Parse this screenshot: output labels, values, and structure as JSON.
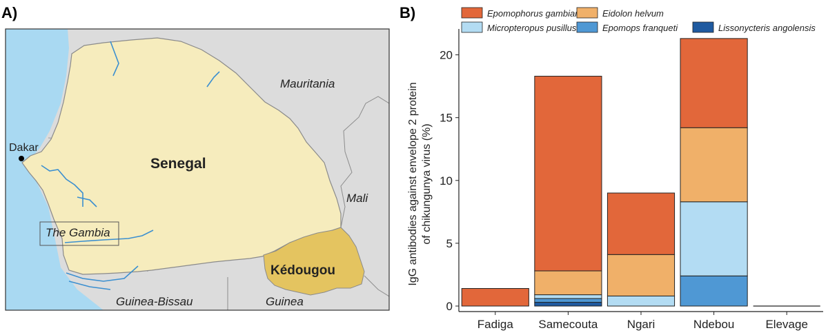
{
  "panels": {
    "a_label": "A)",
    "b_label": "B)"
  },
  "map": {
    "country_label": "Senegal",
    "region_label": "Kédougou",
    "capital_label": "Dakar",
    "neighbors": {
      "mauritania": "Mauritania",
      "mali": "Mali",
      "gambia": "The Gambia",
      "guinea_bissau": "Guinea-Bissau",
      "guinea": "Guinea"
    },
    "colors": {
      "sea": "#a9d9f2",
      "land": "#dcdcdc",
      "senegal": "#f6ecbd",
      "kedougou": "#e4c460",
      "gambia": "#d4d4d4",
      "river": "#3b8fd0"
    }
  },
  "chart_data": {
    "type": "bar",
    "stacked": true,
    "categories": [
      "Fadiga",
      "Samecouta",
      "Ngari",
      "Ndebou",
      "Elevage"
    ],
    "series": [
      {
        "name": "Lissonycteris angolensis",
        "color": "#1f5aa0",
        "values": [
          0,
          0.3,
          0,
          0,
          0
        ]
      },
      {
        "name": "Epomops franqueti",
        "color": "#4f98d4",
        "values": [
          0,
          0.3,
          0,
          2.4,
          0
        ]
      },
      {
        "name": "Micropteropus pusillus",
        "color": "#b3dcf3",
        "values": [
          0,
          0.3,
          0.8,
          5.9,
          0
        ]
      },
      {
        "name": "Eidolon helvum",
        "color": "#f0b069",
        "values": [
          0,
          1.9,
          3.3,
          5.9,
          0
        ]
      },
      {
        "name": "Epomophorus gambianus",
        "color": "#e2673a",
        "values": [
          1.4,
          15.5,
          4.9,
          7.1,
          0
        ]
      }
    ],
    "legend_order": [
      "Epomophorus gambianus",
      "Eidolon helvum",
      "Micropteropus pusillus",
      "Epomops franqueti",
      "Lissonycteris angolensis"
    ],
    "legend_position": "top",
    "ylabel_line1": "IgG antibodies against envelope 2 protein",
    "ylabel_line2": "of chikungunya virus (%)",
    "xlabel": "",
    "ylim": [
      0,
      22.5
    ],
    "yticks": [
      0,
      5,
      10,
      15,
      20
    ],
    "grid": false
  }
}
